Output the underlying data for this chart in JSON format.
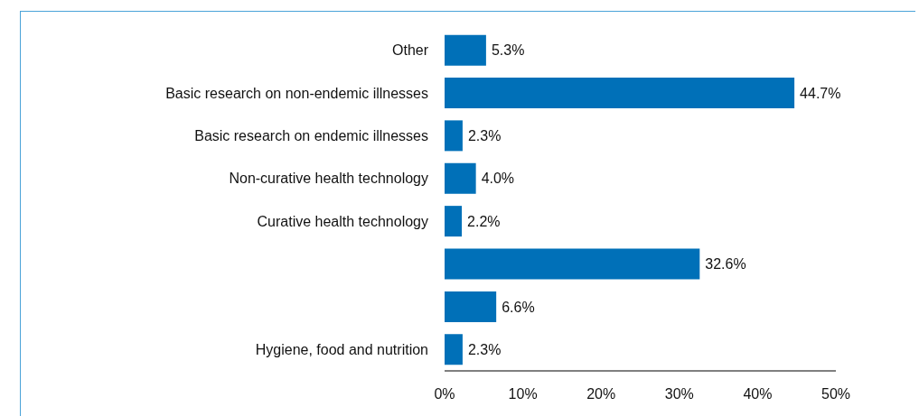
{
  "chart_data": {
    "type": "bar",
    "orientation": "horizontal",
    "categories": [
      "Other",
      "Basic research on non-endemic illnesses",
      "Basic research on endemic illnesses",
      "Non-curative health technology",
      "Curative health technology",
      null,
      null,
      "Hygiene, food and nutrition"
    ],
    "values": [
      5.3,
      44.7,
      2.3,
      4.0,
      2.2,
      32.6,
      6.6,
      2.3
    ],
    "value_labels": [
      "5.3%",
      "44.7%",
      "2.3%",
      "4.0%",
      "2.2%",
      "32.6%",
      "6.6%",
      "2.3%"
    ],
    "color": "#0070b8",
    "xlim": [
      0,
      50
    ],
    "xticks": [
      {
        "value": 0,
        "label": "0%"
      },
      {
        "value": 10,
        "label": "10%"
      },
      {
        "value": 20,
        "label": "20%"
      },
      {
        "value": 30,
        "label": "30%"
      },
      {
        "value": 40,
        "label": "40%"
      },
      {
        "value": 50,
        "label": "50%"
      }
    ],
    "grid": false,
    "legend": false
  }
}
